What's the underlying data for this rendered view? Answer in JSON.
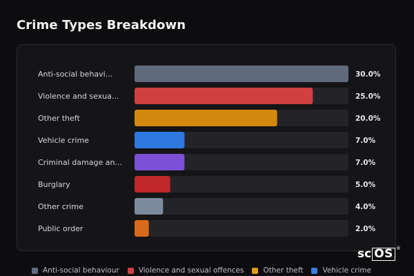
{
  "header": {
    "title": "Crime Types Breakdown"
  },
  "chart_data": {
    "type": "bar",
    "orientation": "horizontal",
    "title": "Crime Types Breakdown",
    "categories": [
      "Anti-social behavi...",
      "Violence and sexua...",
      "Other theft",
      "Vehicle crime",
      "Criminal damage an...",
      "Burglary",
      "Other crime",
      "Public order"
    ],
    "values": [
      30.0,
      25.0,
      20.0,
      7.0,
      7.0,
      5.0,
      4.0,
      2.0
    ],
    "value_labels": [
      "30.0%",
      "25.0%",
      "20.0%",
      "7.0%",
      "7.0%",
      "5.0%",
      "4.0%",
      "2.0%"
    ],
    "colors": [
      "#5f6b7c",
      "#d14040",
      "#d4880f",
      "#2f78e0",
      "#7b4fd6",
      "#c0282a",
      "#7c8a9e",
      "#d96a1c"
    ],
    "xlim": [
      0,
      30
    ],
    "track_color": "#242428",
    "grid": false
  },
  "legend": {
    "items": [
      {
        "label": "Anti-social behaviour",
        "color": "#5f6b7c"
      },
      {
        "label": "Violence and sexual offences",
        "color": "#d14040"
      },
      {
        "label": "Other theft",
        "color": "#e09a17"
      },
      {
        "label": "Vehicle crime",
        "color": "#3a7ee3"
      }
    ]
  },
  "branding": {
    "logo_prefix": "sc",
    "logo_boxed": "OS",
    "logo_mark": "®"
  }
}
